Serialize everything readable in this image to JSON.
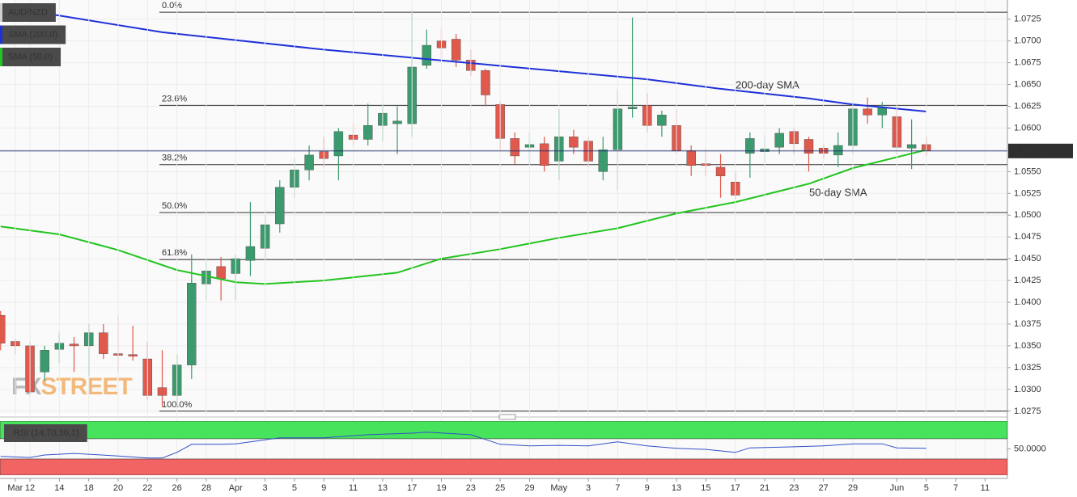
{
  "chart_data": [
    {
      "type": "candlestick",
      "title": "AUD/NZD",
      "x": [
        -2,
        -1,
        0,
        1,
        2,
        3,
        4,
        5,
        6,
        7,
        8,
        9,
        10,
        11,
        12,
        13,
        14,
        15,
        16,
        17,
        18,
        19,
        20,
        21,
        22,
        23,
        24,
        25,
        26,
        27,
        28,
        29,
        30,
        31,
        32,
        33,
        34,
        35,
        36,
        37,
        38,
        39,
        40,
        41,
        42,
        43,
        44,
        45,
        46,
        47,
        48,
        49,
        50,
        51,
        52,
        53,
        54,
        55,
        56,
        57,
        58,
        59,
        60,
        61
      ],
      "open": [
        1.0385,
        1.0355,
        1.035,
        1.032,
        1.0346,
        1.0352,
        1.035,
        1.0365,
        1.0341,
        1.034,
        1.0335,
        1.0302,
        1.0293,
        1.0328,
        1.0421,
        1.0441,
        1.0433,
        1.0448,
        1.0462,
        1.049,
        1.0532,
        1.0552,
        1.0573,
        1.0568,
        1.0592,
        1.0587,
        1.0603,
        1.0605,
        1.0605,
        1.0672,
        1.07,
        1.0702,
        1.0678,
        1.0666,
        1.0627,
        1.0588,
        1.0578,
        1.0582,
        1.0562,
        1.059,
        1.0585,
        1.055,
        1.0575,
        1.0622,
        1.0626,
        1.0603,
        1.0603,
        1.0574,
        1.0559,
        1.0555,
        1.0538,
        1.0571,
        1.0573,
        1.0578,
        1.0596,
        1.0587,
        1.0577,
        1.0569,
        1.058,
        1.0622,
        1.0615,
        1.0613,
        1.0577,
        1.0581
      ],
      "high": [
        1.039,
        1.0358,
        1.0355,
        1.035,
        1.0365,
        1.036,
        1.0375,
        1.0375,
        1.0385,
        1.0373,
        1.0355,
        1.0345,
        1.034,
        1.0455,
        1.045,
        1.0452,
        1.0455,
        1.0515,
        1.05,
        1.054,
        1.0565,
        1.058,
        1.059,
        1.06,
        1.0605,
        1.0628,
        1.0628,
        1.0625,
        1.0735,
        1.0713,
        1.0715,
        1.0708,
        1.069,
        1.0668,
        1.063,
        1.0595,
        1.0595,
        1.059,
        1.0622,
        1.0598,
        1.059,
        1.059,
        1.0645,
        1.0727,
        1.064,
        1.062,
        1.0622,
        1.058,
        1.0576,
        1.057,
        1.055,
        1.0595,
        1.0592,
        1.06,
        1.06,
        1.059,
        1.0582,
        1.0595,
        1.063,
        1.0635,
        1.063,
        1.0628,
        1.061,
        1.059
      ],
      "low": [
        1.0345,
        1.034,
        1.0293,
        1.031,
        1.033,
        1.032,
        1.0315,
        1.0335,
        1.032,
        1.0333,
        1.0288,
        1.028,
        1.028,
        1.0312,
        1.0402,
        1.0402,
        1.0402,
        1.043,
        1.045,
        1.048,
        1.052,
        1.054,
        1.0555,
        1.054,
        1.058,
        1.058,
        1.0585,
        1.057,
        1.059,
        1.0668,
        1.068,
        1.067,
        1.066,
        1.0625,
        1.0575,
        1.0558,
        1.0558,
        1.055,
        1.054,
        1.057,
        1.0555,
        1.054,
        1.0528,
        1.0612,
        1.0595,
        1.059,
        1.057,
        1.0545,
        1.0545,
        1.052,
        1.0518,
        1.0543,
        1.056,
        1.057,
        1.057,
        1.055,
        1.0565,
        1.0555,
        1.057,
        1.0605,
        1.06,
        1.057,
        1.0553,
        1.0568
      ],
      "close": [
        1.0353,
        1.035,
        1.0297,
        1.0345,
        1.0353,
        1.035,
        1.0365,
        1.0341,
        1.0339,
        1.0338,
        1.0293,
        1.0293,
        1.0328,
        1.0422,
        1.0436,
        1.0427,
        1.045,
        1.0464,
        1.0489,
        1.0532,
        1.0552,
        1.0569,
        1.0565,
        1.0596,
        1.0587,
        1.0603,
        1.0617,
        1.0608,
        1.067,
        1.0695,
        1.0692,
        1.0678,
        1.0666,
        1.0638,
        1.0588,
        1.0568,
        1.0581,
        1.0557,
        1.059,
        1.0578,
        1.0562,
        1.0575,
        1.0622,
        1.0624,
        1.0603,
        1.0615,
        1.0574,
        1.0557,
        1.0557,
        1.0545,
        1.0523,
        1.0588,
        1.0576,
        1.0594,
        1.0582,
        1.0571,
        1.0571,
        1.058,
        1.0622,
        1.0615,
        1.0624,
        1.0578,
        1.0581,
        1.05737
      ],
      "up_color": "#3c9b6e",
      "down_color": "#e0594d",
      "xlim": [
        -2.04,
        66.52
      ],
      "ylim": [
        1.0272,
        1.0747
      ],
      "yticks": [
        1.0275,
        {
          "value": 1.03,
          "label": "1.0300"
        },
        1.0325,
        {
          "value": 1.035,
          "label": "1.0350"
        },
        1.0375,
        {
          "value": 1.04,
          "label": "1.0400"
        },
        1.0425,
        {
          "value": 1.045,
          "label": "1.0450"
        },
        1.0475,
        {
          "value": 1.05,
          "label": "1.0500"
        },
        1.0525,
        {
          "value": 1.055,
          "label": "1.0550"
        },
        1.0575,
        {
          "value": 1.06,
          "label": "1.0600"
        },
        1.0625,
        {
          "value": 1.065,
          "label": "1.0650"
        },
        1.0675,
        {
          "value": 1.07,
          "label": "1.0700"
        },
        1.0725
      ],
      "xticks": [
        {
          "value": -1,
          "label": "Mar"
        },
        {
          "value": 0,
          "label": "12"
        },
        {
          "value": 2,
          "label": "14"
        },
        {
          "value": 4,
          "label": "18"
        },
        {
          "value": 6,
          "label": "20"
        },
        {
          "value": 8,
          "label": "22"
        },
        {
          "value": 10,
          "label": "26"
        },
        {
          "value": 12,
          "label": "28"
        },
        {
          "value": 14,
          "label": "Apr"
        },
        {
          "value": 16,
          "label": "3"
        },
        {
          "value": 18,
          "label": "5"
        },
        {
          "value": 20,
          "label": "9"
        },
        {
          "value": 22,
          "label": "11"
        },
        {
          "value": 24,
          "label": "13"
        },
        {
          "value": 26,
          "label": "17"
        },
        {
          "value": 28,
          "label": "19"
        },
        {
          "value": 30,
          "label": "23"
        },
        {
          "value": 32,
          "label": "25"
        },
        {
          "value": 34,
          "label": "29"
        },
        {
          "value": 36,
          "label": "May"
        },
        {
          "value": 38,
          "label": "3"
        },
        {
          "value": 40,
          "label": "7"
        },
        {
          "value": 42,
          "label": "9"
        },
        {
          "value": 44,
          "label": "13"
        },
        {
          "value": 46,
          "label": "15"
        },
        {
          "value": 48,
          "label": "17"
        },
        {
          "value": 50,
          "label": "21"
        },
        {
          "value": 52,
          "label": "23"
        },
        {
          "value": 54,
          "label": "27"
        },
        {
          "value": 56,
          "label": "29"
        },
        {
          "value": 59,
          "label": "Jun"
        },
        {
          "value": 61,
          "label": "5"
        },
        {
          "value": 63,
          "label": "7"
        },
        {
          "value": 65,
          "label": "11"
        }
      ],
      "grid": true,
      "overlays": [
        {
          "name": "SMA (200,0)",
          "label": "200-day SMA",
          "color": "#1f30d8",
          "label_color": "#1e8fe6",
          "x": [
            -2,
            9,
            20,
            31,
            42,
            47,
            53,
            56,
            61
          ],
          "values": [
            1.074,
            1.071,
            1.069,
            1.0673,
            1.0656,
            1.0645,
            1.0634,
            1.0627,
            1.0619
          ]
        },
        {
          "name": "SMA (50,0)",
          "label": "50-day SMA",
          "color": "#22c41f",
          "label_color": "#1fb51c",
          "x": [
            -2,
            2,
            6,
            10,
            14,
            16,
            20,
            25,
            28,
            32,
            36,
            40,
            44,
            48,
            53,
            56,
            61
          ],
          "values": [
            1.0487,
            1.0478,
            1.046,
            1.0437,
            1.0423,
            1.0421,
            1.0425,
            1.0434,
            1.045,
            1.0461,
            1.0474,
            1.0485,
            1.0502,
            1.0515,
            1.0536,
            1.0554,
            1.0575
          ]
        }
      ],
      "fib_levels": [
        {
          "value": 1.0733,
          "label": "0.0%"
        },
        {
          "value": 1.0626,
          "label": "23.6%"
        },
        {
          "value": 1.0558,
          "label": "38.2%"
        },
        {
          "value": 1.0503,
          "label": "50.0%"
        },
        {
          "value": 1.0449,
          "label": "61.8%"
        },
        {
          "value": 1.0275,
          "label": "100.0%"
        }
      ],
      "watermark": [
        "FX",
        "STREET"
      ]
    },
    {
      "type": "line",
      "title": "RSI (14,70,30,1)",
      "color": "#3350c8",
      "x": [
        -2,
        0,
        1,
        3,
        6,
        8,
        9,
        10,
        11,
        13,
        14,
        17,
        20,
        23,
        26,
        27,
        30,
        32,
        34,
        36,
        38,
        40,
        42,
        44,
        46,
        48,
        49,
        52,
        54,
        56,
        58,
        59,
        61
      ],
      "values": [
        35,
        33,
        38,
        41,
        36,
        32,
        32,
        43,
        59,
        59,
        60,
        72,
        72,
        78,
        81,
        83,
        78,
        59,
        56,
        57,
        56,
        64,
        56,
        51,
        49,
        43,
        52,
        54,
        56,
        60,
        60,
        52,
        51
      ],
      "xlim": [
        -2.04,
        66.52
      ],
      "ylim": [
        -2,
        105
      ],
      "yticks": [
        {
          "value": 50,
          "label": "50.0000"
        }
      ],
      "bands": [
        {
          "value": 70,
          "color": "#48e35c"
        },
        {
          "value": 30,
          "color": "#f26464"
        }
      ]
    }
  ]
}
